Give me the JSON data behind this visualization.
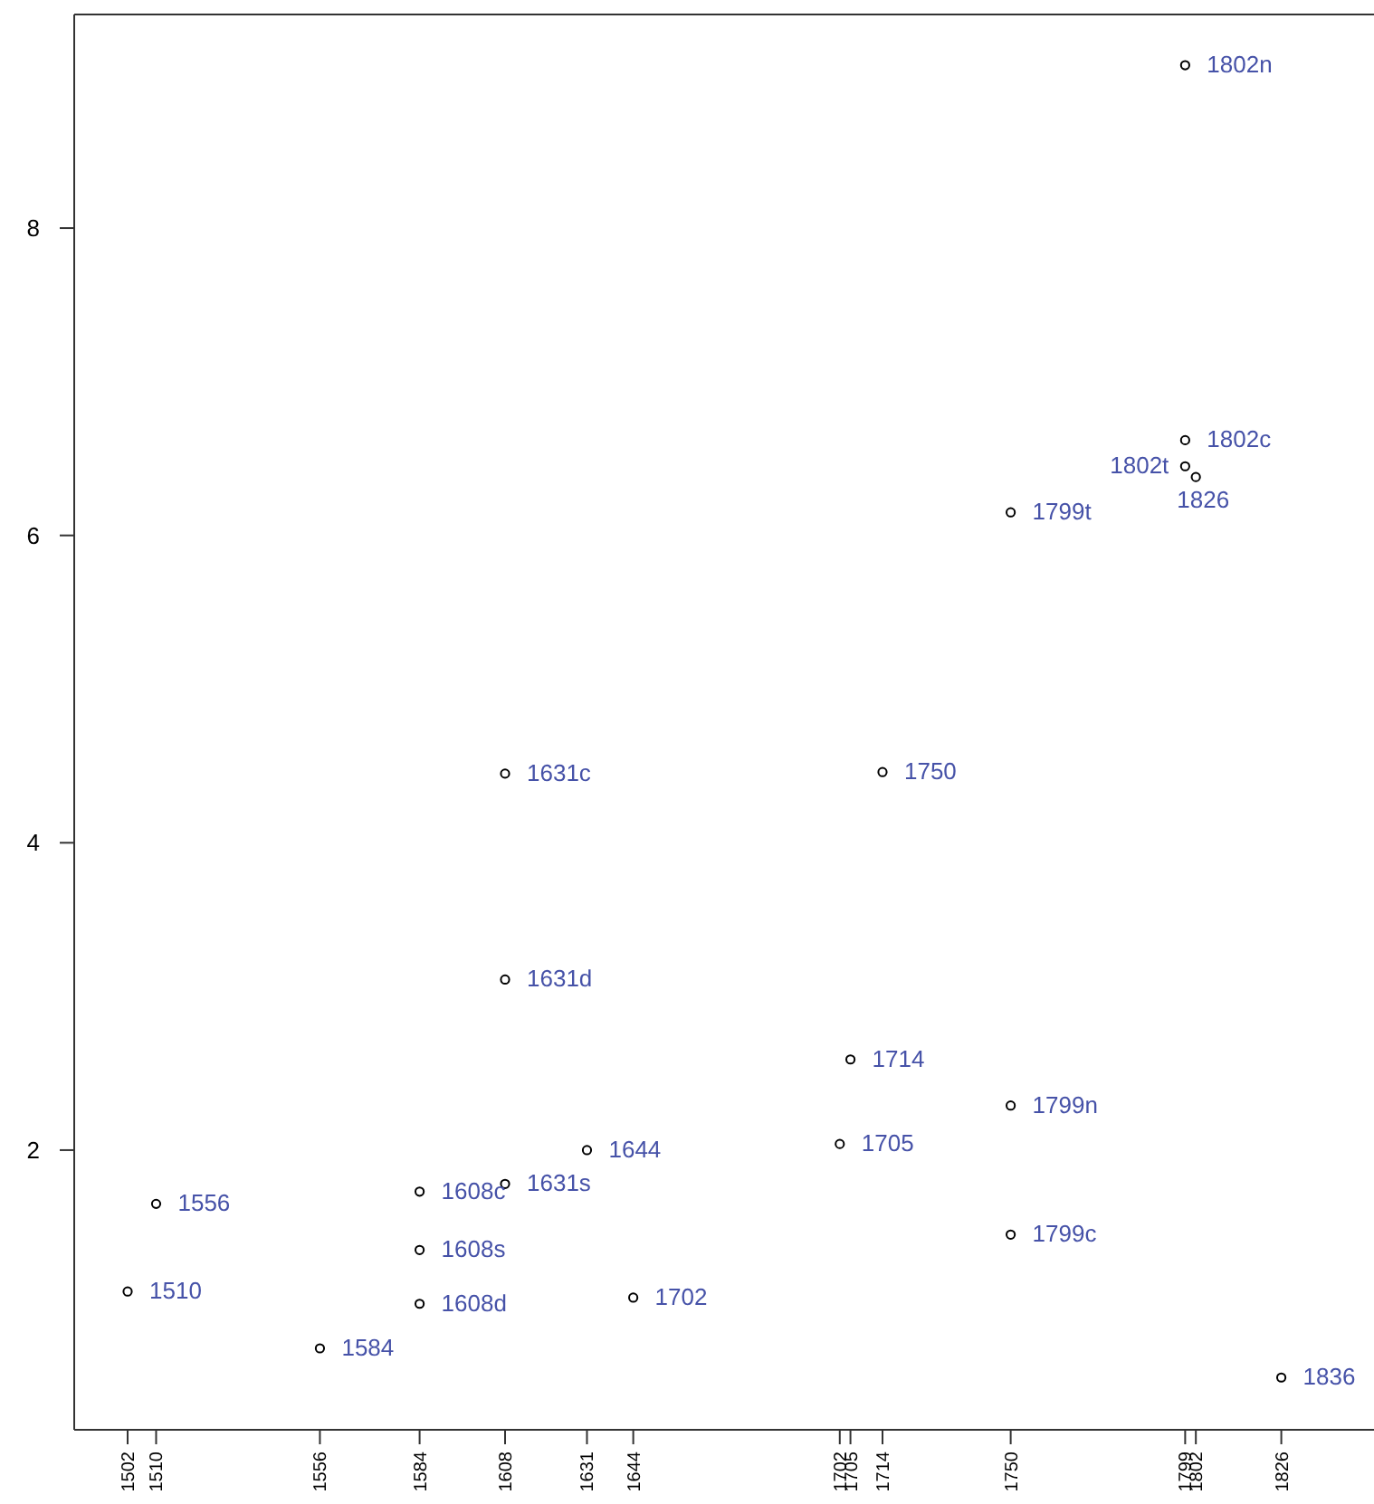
{
  "chart_data": {
    "type": "scatter",
    "x": [
      1502,
      1510,
      1556,
      1584,
      1584,
      1584,
      1608,
      1608,
      1608,
      1631,
      1644,
      1702,
      1705,
      1714,
      1750,
      1750,
      1750,
      1799,
      1799,
      1799,
      1802,
      1826
    ],
    "series": [
      {
        "color": "#000000",
        "values": [
          1.08,
          1.65,
          0.71,
          1.73,
          1.35,
          1.0,
          4.45,
          3.11,
          1.78,
          2.0,
          1.04,
          2.04,
          2.59,
          4.46,
          6.15,
          2.29,
          1.45,
          9.06,
          6.62,
          6.45,
          6.38,
          0.52
        ]
      }
    ],
    "marker": "circle",
    "xlim": [
      1487,
      1850
    ],
    "xticks": [
      1502,
      1510,
      1556,
      1584,
      1608,
      1631,
      1644,
      1702,
      1705,
      1714,
      1750,
      1799,
      1802,
      1826
    ],
    "ylim": [
      0.18,
      9.39
    ],
    "yticks": [
      2,
      4,
      6,
      8
    ],
    "annotations": [
      {
        "text": "1510",
        "x": 1502,
        "y": 1.08
      },
      {
        "text": "1556",
        "x": 1510,
        "y": 1.65
      },
      {
        "text": "1584",
        "x": 1556,
        "y": 0.71
      },
      {
        "text": "1608c",
        "x": 1584,
        "y": 1.73
      },
      {
        "text": "1608s",
        "x": 1584,
        "y": 1.35
      },
      {
        "text": "1608d",
        "x": 1584,
        "y": 1.0
      },
      {
        "text": "1631c",
        "x": 1608,
        "y": 4.45
      },
      {
        "text": "1631d",
        "x": 1608,
        "y": 3.11
      },
      {
        "text": "1631s",
        "x": 1608,
        "y": 1.78
      },
      {
        "text": "1644",
        "x": 1631,
        "y": 2.0
      },
      {
        "text": "1702",
        "x": 1644,
        "y": 1.04
      },
      {
        "text": "1705",
        "x": 1702,
        "y": 2.04
      },
      {
        "text": "1714",
        "x": 1705,
        "y": 2.59
      },
      {
        "text": "1750",
        "x": 1714,
        "y": 4.46
      },
      {
        "text": "1799t",
        "x": 1750,
        "y": 6.15
      },
      {
        "text": "1799n",
        "x": 1750,
        "y": 2.29
      },
      {
        "text": "1799c",
        "x": 1750,
        "y": 1.45
      },
      {
        "text": "1802n",
        "x": 1799,
        "y": 9.06
      },
      {
        "text": "1802c",
        "x": 1799,
        "y": 6.62
      },
      {
        "text": "1802t",
        "x": 1799,
        "y": 6.45
      },
      {
        "text": "1826",
        "x": 1802,
        "y": 6.38
      },
      {
        "text": "1836",
        "x": 1826,
        "y": 0.52
      }
    ]
  }
}
